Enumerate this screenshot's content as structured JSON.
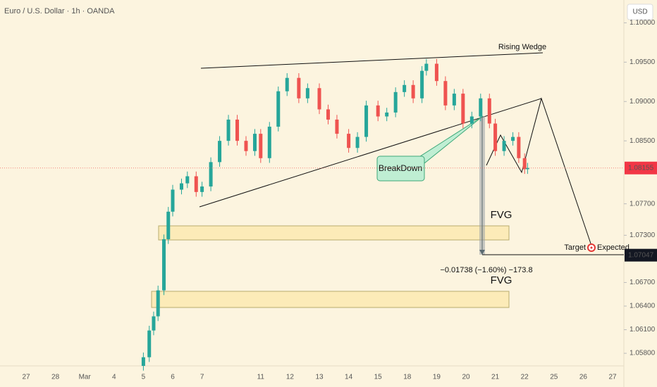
{
  "chart_data": {
    "type": "candlestick",
    "title": "Euro / U.S. Dollar · 1h · OANDA",
    "currency": "USD",
    "categories": [
      "27",
      "28",
      "Mar",
      "4",
      "5",
      "6",
      "7",
      null,
      "11",
      "12",
      "13",
      "14",
      "15",
      "18",
      "19",
      "20",
      "21",
      "22",
      "25",
      "26",
      "27"
    ],
    "x": [
      4.0,
      4.2,
      4.35,
      4.5,
      4.7,
      4.85,
      5.0,
      5.3,
      5.5,
      5.8,
      6.0,
      6.3,
      6.6,
      6.9,
      7.2,
      7.5,
      7.8,
      8.0,
      8.3,
      8.6,
      8.9,
      9.3,
      9.6,
      10.0,
      10.3,
      10.6,
      11.0,
      11.3,
      11.6,
      12.0,
      12.3,
      12.6,
      12.9,
      13.2,
      13.5,
      13.65,
      14.0,
      14.3,
      14.6,
      14.9,
      15.2,
      15.5,
      15.8,
      16.0,
      16.3,
      16.6,
      16.8,
      17.0,
      17.1
    ],
    "open": [
      1.0564,
      1.0575,
      1.0609,
      1.0627,
      1.066,
      1.0725,
      1.076,
      1.0788,
      1.0796,
      1.0805,
      1.0785,
      1.0792,
      1.0823,
      1.085,
      1.0877,
      1.085,
      1.0837,
      1.0859,
      1.0828,
      1.0868,
      1.0913,
      1.093,
      1.0904,
      1.0917,
      1.089,
      1.0877,
      1.0859,
      1.0841,
      1.0855,
      1.0895,
      1.0881,
      1.0886,
      1.0912,
      1.0921,
      1.0904,
      1.0939,
      1.0948,
      1.0926,
      1.0895,
      1.091,
      1.0872,
      1.0881,
      1.0904,
      1.0872,
      1.0837,
      1.085,
      1.0855,
      1.0828,
      1.0814
    ],
    "high": [
      1.0581,
      1.0615,
      1.0633,
      1.0666,
      1.0731,
      1.0766,
      1.0794,
      1.0802,
      1.0811,
      1.0811,
      1.0798,
      1.0829,
      1.0856,
      1.0883,
      1.0883,
      1.0856,
      1.0865,
      1.0865,
      1.0874,
      1.0919,
      1.0936,
      1.0936,
      1.0923,
      1.0923,
      1.0896,
      1.0883,
      1.0865,
      1.0861,
      1.0901,
      1.0901,
      1.0892,
      1.0918,
      1.0927,
      1.0927,
      1.0945,
      1.0954,
      1.0954,
      1.0932,
      1.0916,
      1.0916,
      1.0887,
      1.091,
      1.091,
      1.0878,
      1.0856,
      1.0861,
      1.0861,
      1.0834,
      1.0822
    ],
    "low": [
      1.0558,
      1.0569,
      1.0603,
      1.0621,
      1.0654,
      1.0719,
      1.0754,
      1.0782,
      1.079,
      1.0779,
      1.0779,
      1.0786,
      1.0817,
      1.0844,
      1.0844,
      1.0831,
      1.0831,
      1.0822,
      1.0822,
      1.0862,
      1.0907,
      1.0898,
      1.0898,
      1.0884,
      1.0871,
      1.0853,
      1.0835,
      1.0835,
      1.0849,
      1.0875,
      1.0875,
      1.088,
      1.0906,
      1.0898,
      1.0898,
      1.0933,
      1.092,
      1.0889,
      1.0889,
      1.0866,
      1.0866,
      1.0875,
      1.0866,
      1.0831,
      1.0831,
      1.0844,
      1.0822,
      1.0808,
      1.0808
    ],
    "close": [
      1.0575,
      1.0609,
      1.0627,
      1.066,
      1.0725,
      1.076,
      1.0788,
      1.0796,
      1.0805,
      1.0785,
      1.0792,
      1.0823,
      1.085,
      1.0877,
      1.085,
      1.0837,
      1.0859,
      1.0828,
      1.0868,
      1.0913,
      1.093,
      1.0904,
      1.0917,
      1.089,
      1.0877,
      1.0859,
      1.0841,
      1.0855,
      1.0895,
      1.0881,
      1.0886,
      1.0912,
      1.0921,
      1.0904,
      1.0939,
      1.0948,
      1.0926,
      1.0895,
      1.091,
      1.0872,
      1.0881,
      1.0904,
      1.0872,
      1.0837,
      1.085,
      1.0855,
      1.0828,
      1.0814,
      1.08155
    ],
    "up_color": "#26a69a",
    "down_color": "#ef5350",
    "ylim": [
      1.0564,
      1.1029
    ],
    "yticks": [
      {
        "value": 1.1,
        "label": "1.10000"
      },
      {
        "value": 1.095,
        "label": "1.09500"
      },
      {
        "value": 1.09,
        "label": "1.09000"
      },
      {
        "value": 1.085,
        "label": "1.08500"
      },
      {
        "value": 1.077,
        "label": "1.07700"
      },
      {
        "value": 1.073,
        "label": "1.07300"
      },
      {
        "value": 1.067,
        "label": "1.06700"
      },
      {
        "value": 1.064,
        "label": "1.06400"
      },
      {
        "value": 1.061,
        "label": "1.06100"
      },
      {
        "value": 1.058,
        "label": "1.05800"
      }
    ],
    "last_price": 1.08155,
    "target_price": 1.07047,
    "annotations": {
      "wedge": "Rising Wedge",
      "breakdown": "BreakDown",
      "fvg_upper": "FVG",
      "fvg_lower": "FVG",
      "measure": "−0.01738 (−1.60%) −173.8",
      "target": "Target",
      "expected": "Expected"
    }
  }
}
